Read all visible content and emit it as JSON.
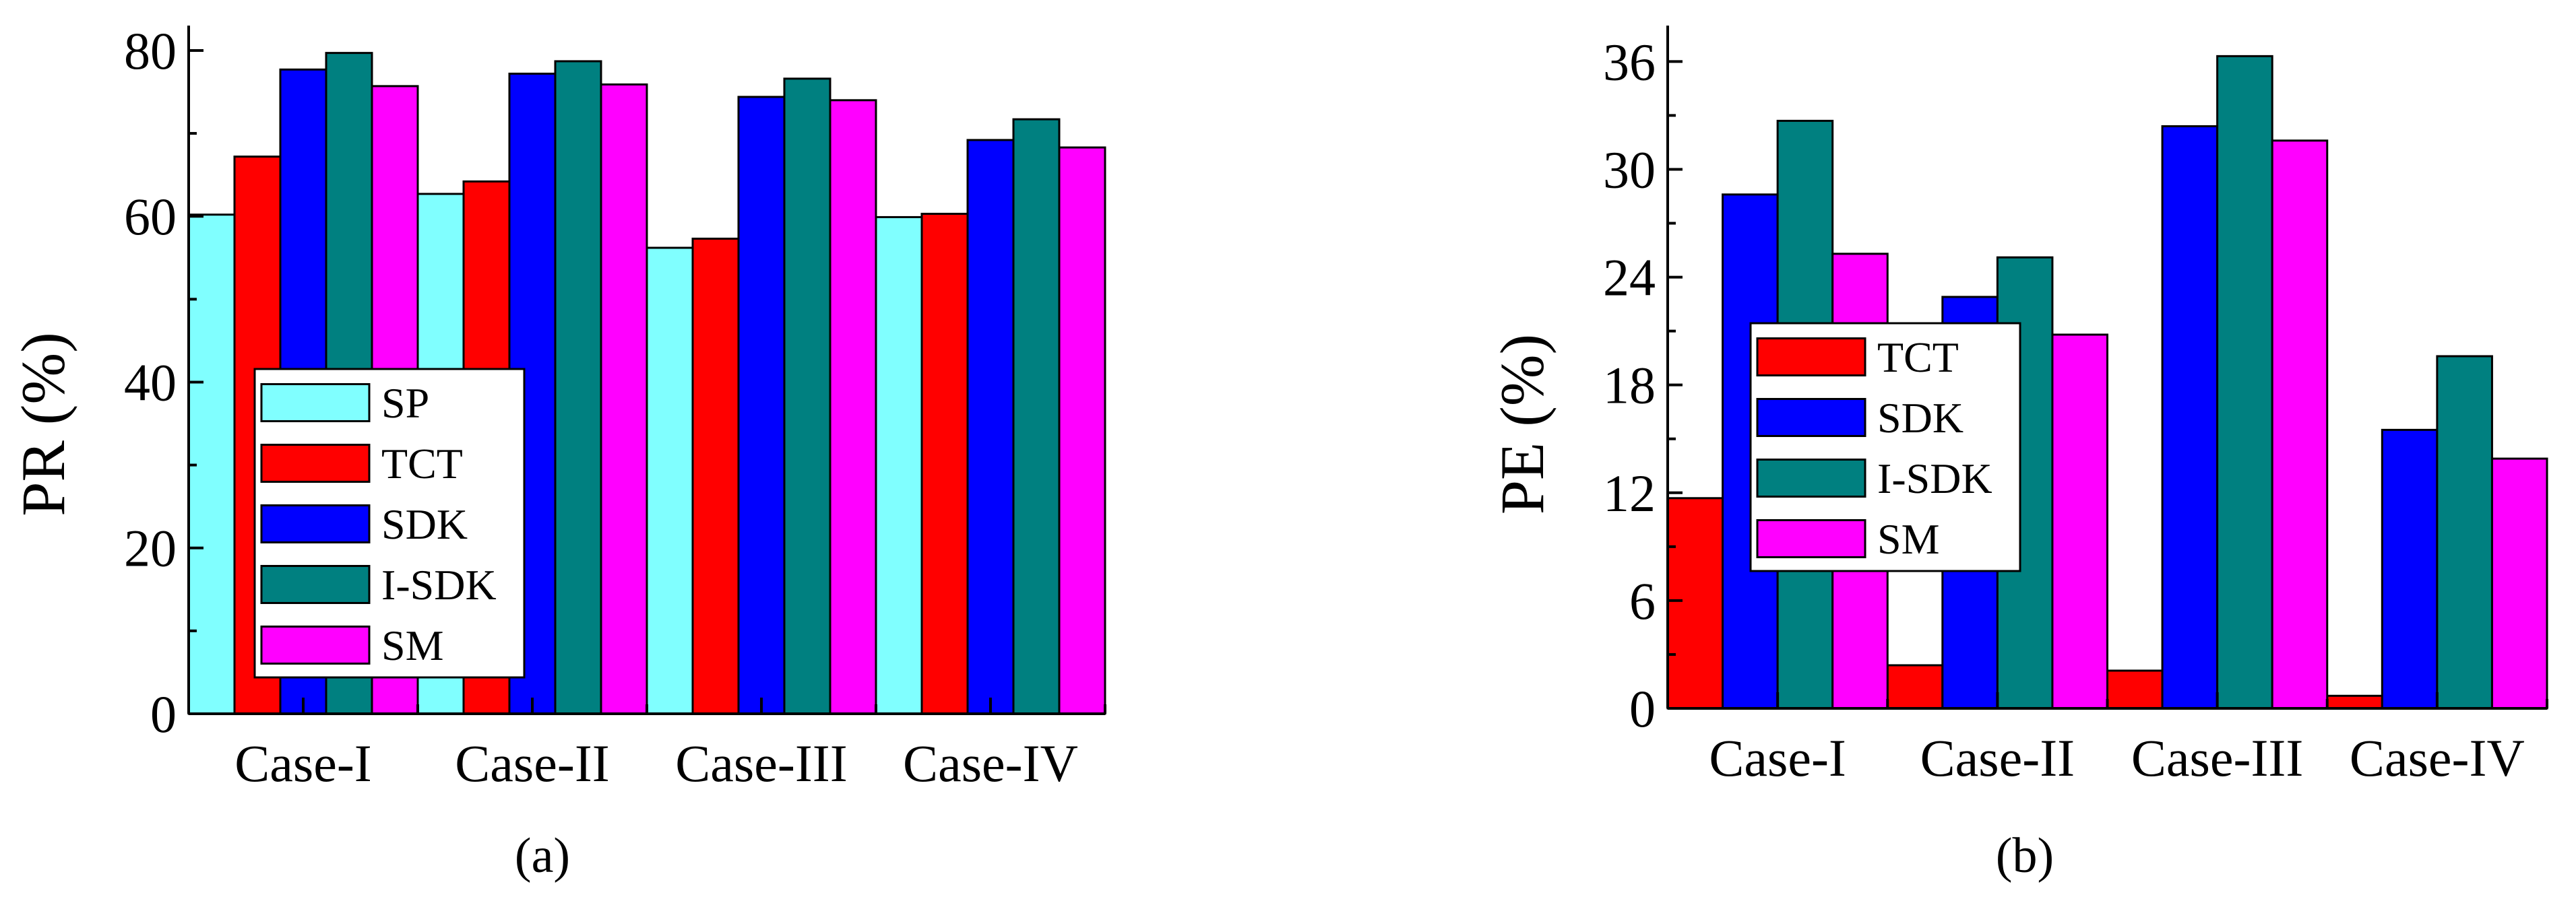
{
  "chart_data": [
    {
      "type": "bar",
      "panel": "a",
      "caption": "(a)",
      "ylabel": "PR (%)",
      "xlabel": "",
      "categories": [
        "Case-I",
        "Case-II",
        "Case-III",
        "Case-IV"
      ],
      "ylim": [
        0,
        83
      ],
      "yticks": [
        0,
        20,
        40,
        60,
        80
      ],
      "minor_step": 10,
      "series": [
        {
          "name": "SP",
          "color": "#80ffff",
          "values": [
            60.2,
            62.7,
            56.2,
            59.9
          ]
        },
        {
          "name": "TCT",
          "color": "#ff0000",
          "values": [
            67.2,
            64.2,
            57.3,
            60.3
          ]
        },
        {
          "name": "SDK",
          "color": "#0000ff",
          "values": [
            77.7,
            77.2,
            74.4,
            69.2
          ]
        },
        {
          "name": "I-SDK",
          "color": "#008080",
          "values": [
            79.7,
            78.7,
            76.6,
            71.7
          ]
        },
        {
          "name": "SM",
          "color": "#ff00ff",
          "values": [
            75.7,
            75.9,
            74.0,
            68.3
          ]
        }
      ],
      "legend_position": "center-left"
    },
    {
      "type": "bar",
      "panel": "b",
      "caption": "(b)",
      "ylabel": "PE (%)",
      "xlabel": "",
      "categories": [
        "Case-I",
        "Case-II",
        "Case-III",
        "Case-IV"
      ],
      "ylim": [
        0,
        38
      ],
      "yticks": [
        0,
        6,
        12,
        18,
        24,
        30,
        36
      ],
      "minor_step": 3,
      "series": [
        {
          "name": "TCT",
          "color": "#ff0000",
          "values": [
            11.7,
            2.4,
            2.1,
            0.7
          ]
        },
        {
          "name": "SDK",
          "color": "#0000ff",
          "values": [
            28.6,
            22.9,
            32.4,
            15.5
          ]
        },
        {
          "name": "I-SDK",
          "color": "#008080",
          "values": [
            32.7,
            25.1,
            36.3,
            19.6
          ]
        },
        {
          "name": "SM",
          "color": "#ff00ff",
          "values": [
            25.3,
            20.8,
            31.6,
            13.9
          ]
        }
      ],
      "legend_position": "center-left"
    }
  ]
}
